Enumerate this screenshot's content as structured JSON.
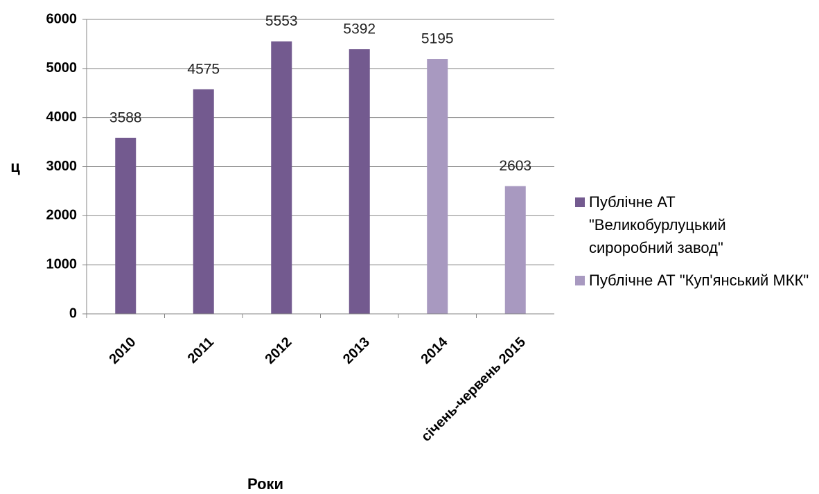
{
  "chart_data": {
    "type": "bar",
    "categories": [
      "2010",
      "2011",
      "2012",
      "2013",
      "2014",
      "січень-червень 2015"
    ],
    "series": [
      {
        "name": "Публічне АТ \"Великобурлуцький сироробний завод\"",
        "color": "#735a8f",
        "values": [
          3588,
          4575,
          5553,
          5392,
          null,
          null
        ]
      },
      {
        "name": "Публічне АТ \"Куп'янський МКК\"",
        "color": "#a899c0",
        "values": [
          null,
          null,
          null,
          null,
          5195,
          2603
        ]
      }
    ],
    "ylim": [
      0,
      6000
    ],
    "yticks": [
      0,
      1000,
      2000,
      3000,
      4000,
      5000,
      6000
    ],
    "y_label": "ц",
    "x_label": "Роки",
    "grid": true,
    "legend": "right"
  }
}
